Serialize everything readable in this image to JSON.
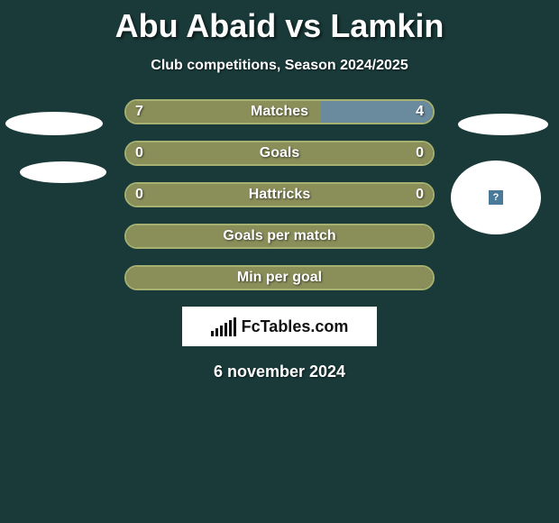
{
  "title": "Abu Abaid vs Lamkin",
  "subtitle": "Club competitions, Season 2024/2025",
  "date": "6 november 2024",
  "brand": "FcTables.com",
  "colors": {
    "background": "#1a3a3a",
    "left_fill": "#8a8f5a",
    "right_fill": "#6a8a9e",
    "border_default": "#a6b070",
    "white": "#ffffff"
  },
  "rows": [
    {
      "label": "Matches",
      "left": "7",
      "right": "4",
      "left_pct": 63.6,
      "right_pct": 36.4,
      "right_color": "#6a8a9e"
    },
    {
      "label": "Goals",
      "left": "0",
      "right": "0",
      "left_pct": 100,
      "right_pct": 0,
      "right_color": "#6a8a9e"
    },
    {
      "label": "Hattricks",
      "left": "0",
      "right": "0",
      "left_pct": 100,
      "right_pct": 0,
      "right_color": "#6a8a9e"
    },
    {
      "label": "Goals per match",
      "left": "",
      "right": "",
      "left_pct": 100,
      "right_pct": 0,
      "right_color": "#6a8a9e"
    },
    {
      "label": "Min per goal",
      "left": "",
      "right": "",
      "left_pct": 100,
      "right_pct": 0,
      "right_color": "#6a8a9e"
    }
  ],
  "brand_bars": [
    6,
    9,
    12,
    15,
    18,
    21
  ]
}
